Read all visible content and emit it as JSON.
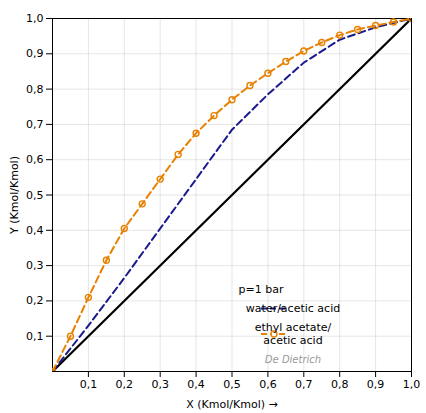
{
  "chart_data": {
    "type": "line",
    "xlabel": "X (Kmol/Kmol) →",
    "ylabel": "Y (Kmol/Kmol)",
    "xlim": [
      0,
      1.0
    ],
    "ylim": [
      0,
      1.0
    ],
    "xticks": [
      {
        "value": 0.1,
        "label": "0,1"
      },
      {
        "value": 0.2,
        "label": "0,2"
      },
      {
        "value": 0.3,
        "label": "0,3"
      },
      {
        "value": 0.4,
        "label": "0,4"
      },
      {
        "value": 0.5,
        "label": "0,5"
      },
      {
        "value": 0.6,
        "label": "0,6"
      },
      {
        "value": 0.7,
        "label": "0,7"
      },
      {
        "value": 0.8,
        "label": "0,8"
      },
      {
        "value": 0.9,
        "label": "0,9"
      },
      {
        "value": 1.0,
        "label": "1,0"
      }
    ],
    "yticks": [
      {
        "value": 0.1,
        "label": "0,1"
      },
      {
        "value": 0.2,
        "label": "0,2"
      },
      {
        "value": 0.3,
        "label": "0,3"
      },
      {
        "value": 0.4,
        "label": "0,4"
      },
      {
        "value": 0.5,
        "label": "0,5"
      },
      {
        "value": 0.6,
        "label": "0,6"
      },
      {
        "value": 0.7,
        "label": "0,7"
      },
      {
        "value": 0.8,
        "label": "0,8"
      },
      {
        "value": 0.9,
        "label": "0,9"
      },
      {
        "value": 1.0,
        "label": "1,0"
      }
    ],
    "grid": true,
    "legend": "lower right",
    "annotations": [
      "p=1 bar",
      "De Dietrich"
    ],
    "series": [
      {
        "color": "#000000",
        "x": [
          0,
          1
        ],
        "values": [
          0,
          1
        ]
      },
      {
        "name": "water/acetic acid",
        "color": "#1a1a8c",
        "line_style": "dashed",
        "x": [
          0.0,
          0.1,
          0.2,
          0.3,
          0.4,
          0.5,
          0.6,
          0.7,
          0.8,
          0.9,
          1.0
        ],
        "values": [
          0.0,
          0.13,
          0.265,
          0.405,
          0.545,
          0.685,
          0.785,
          0.875,
          0.94,
          0.975,
          1.0
        ]
      },
      {
        "name": "ethyl acetate/\nacetic acid",
        "color": "#e88000",
        "line_style": "dashed",
        "marker": "circle",
        "x": [
          0.0,
          0.05,
          0.1,
          0.15,
          0.2,
          0.25,
          0.3,
          0.35,
          0.4,
          0.45,
          0.5,
          0.55,
          0.6,
          0.65,
          0.7,
          0.75,
          0.8,
          0.85,
          0.9,
          0.95,
          1.0
        ],
        "values": [
          0.0,
          0.1,
          0.21,
          0.315,
          0.405,
          0.475,
          0.545,
          0.615,
          0.675,
          0.725,
          0.77,
          0.81,
          0.845,
          0.878,
          0.908,
          0.932,
          0.953,
          0.969,
          0.98,
          0.99,
          1.0
        ]
      }
    ]
  }
}
